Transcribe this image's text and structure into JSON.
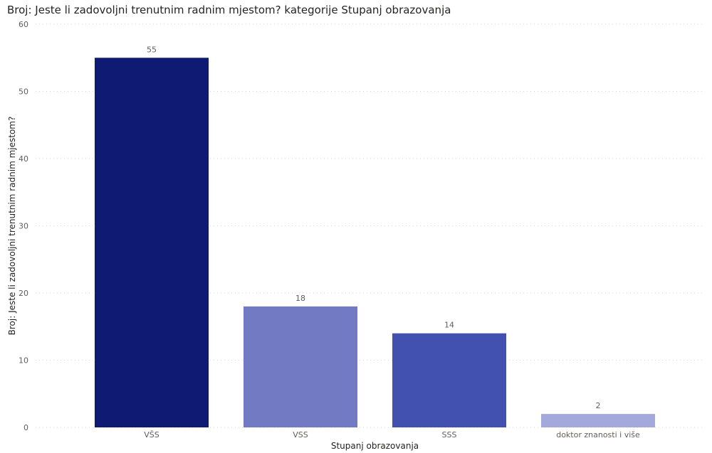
{
  "chart_data": {
    "type": "bar",
    "title": "Broj: Jeste li zadovoljni trenutnim radnim mjestom? kategorije Stupanj obrazovanja",
    "xlabel": "Stupanj obrazovanja",
    "ylabel": "Broj: Jeste li zadovoljni trenutnim radnim mjestom?",
    "categories": [
      "VŠS",
      "VSS",
      "SSS",
      "doktor znanosti i više"
    ],
    "values": [
      55,
      18,
      14,
      2
    ],
    "bar_colors": [
      "#0f1a73",
      "#717ac3",
      "#4250b0",
      "#a4a9dc"
    ],
    "ylim": [
      0,
      60
    ],
    "yticks": [
      0,
      10,
      20,
      30,
      40,
      50,
      60
    ],
    "grid": true,
    "data_labels": true
  }
}
